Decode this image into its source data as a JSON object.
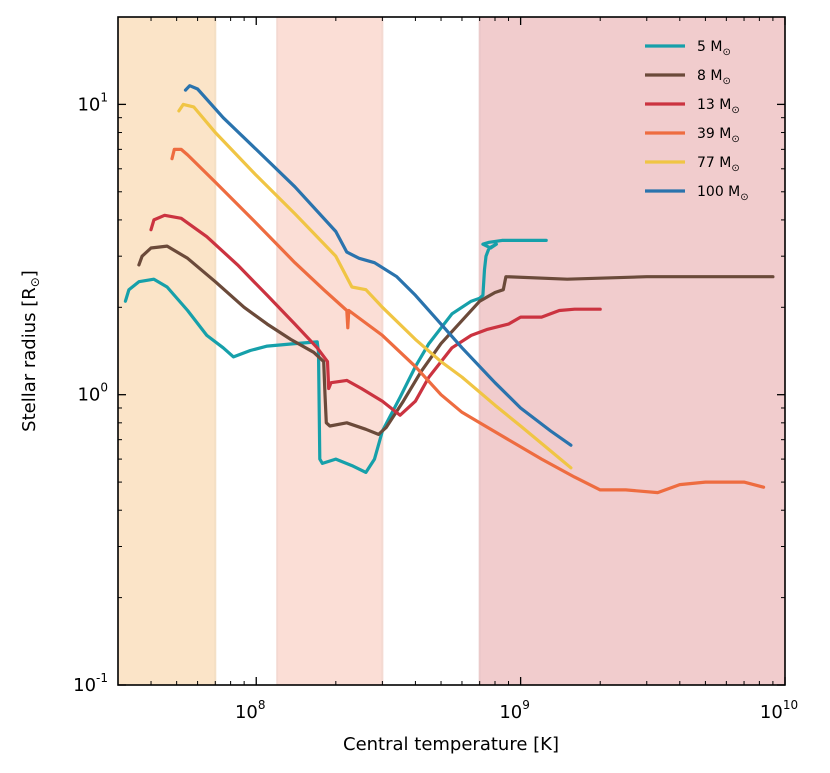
{
  "chart_data": {
    "type": "line",
    "xscale": "log",
    "yscale": "log",
    "xlim": [
      30000000,
      10000000000
    ],
    "ylim": [
      0.1,
      20
    ],
    "xlabel": "Central temperature [K]",
    "ylabel": "Stellar radius [R",
    "ylabel_sun": "⊙",
    "ylabel_close": "]",
    "sun_symbol": "⊙",
    "legend_position": "top-right",
    "xticks": [
      {
        "value": 100000000,
        "base": "10",
        "exp": "8"
      },
      {
        "value": 1000000000,
        "base": "10",
        "exp": "9"
      },
      {
        "value": 10000000000,
        "base": "10",
        "exp": "10"
      }
    ],
    "yticks": [
      {
        "value": 0.1,
        "base": "10",
        "exp": "-1"
      },
      {
        "value": 1,
        "base": "10",
        "exp": "0"
      },
      {
        "value": 10,
        "base": "10",
        "exp": "1"
      }
    ],
    "shaded_bands": [
      {
        "x": [
          30000000,
          70000000
        ],
        "color": "#fbe4c8"
      },
      {
        "x": [
          120000000,
          300000000
        ],
        "color": "#fbded6"
      },
      {
        "x": [
          700000000,
          10000000000
        ],
        "color": "#f1cccd"
      }
    ],
    "series": [
      {
        "name": "5 M",
        "color": "#16a0aa",
        "points": [
          [
            32000000,
            2.1
          ],
          [
            33000000,
            2.3
          ],
          [
            36000000,
            2.45
          ],
          [
            41000000,
            2.5
          ],
          [
            46000000,
            2.35
          ],
          [
            55000000,
            1.95
          ],
          [
            65000000,
            1.6
          ],
          [
            75000000,
            1.45
          ],
          [
            82000000,
            1.35
          ],
          [
            95000000,
            1.42
          ],
          [
            110000000,
            1.47
          ],
          [
            140000000,
            1.5
          ],
          [
            170000000,
            1.52
          ],
          [
            172000000,
            1.4
          ],
          [
            174000000,
            0.6
          ],
          [
            178000000,
            0.58
          ],
          [
            200000000,
            0.6
          ],
          [
            230000000,
            0.57
          ],
          [
            260000000,
            0.54
          ],
          [
            280000000,
            0.6
          ],
          [
            300000000,
            0.75
          ],
          [
            350000000,
            0.98
          ],
          [
            400000000,
            1.25
          ],
          [
            450000000,
            1.5
          ],
          [
            550000000,
            1.9
          ],
          [
            650000000,
            2.1
          ],
          [
            700000000,
            2.15
          ],
          [
            720000000,
            2.2
          ],
          [
            730000000,
            2.7
          ],
          [
            740000000,
            3.0
          ],
          [
            760000000,
            3.2
          ],
          [
            810000000,
            3.3
          ],
          [
            770000000,
            3.2
          ],
          [
            720000000,
            3.3
          ],
          [
            760000000,
            3.35
          ],
          [
            850000000,
            3.4
          ],
          [
            1000000000,
            3.4
          ],
          [
            1250000000,
            3.4
          ]
        ]
      },
      {
        "name": "8 M",
        "color": "#6b4a3a",
        "points": [
          [
            36000000,
            2.8
          ],
          [
            37000000,
            3.0
          ],
          [
            40000000,
            3.2
          ],
          [
            46000000,
            3.25
          ],
          [
            55000000,
            2.95
          ],
          [
            70000000,
            2.45
          ],
          [
            90000000,
            2.0
          ],
          [
            110000000,
            1.75
          ],
          [
            135000000,
            1.55
          ],
          [
            165000000,
            1.4
          ],
          [
            180000000,
            1.3
          ],
          [
            182000000,
            1.0
          ],
          [
            184000000,
            0.8
          ],
          [
            190000000,
            0.78
          ],
          [
            220000000,
            0.8
          ],
          [
            260000000,
            0.76
          ],
          [
            290000000,
            0.73
          ],
          [
            310000000,
            0.77
          ],
          [
            360000000,
            0.95
          ],
          [
            420000000,
            1.2
          ],
          [
            500000000,
            1.5
          ],
          [
            600000000,
            1.8
          ],
          [
            700000000,
            2.1
          ],
          [
            800000000,
            2.25
          ],
          [
            860000000,
            2.3
          ],
          [
            880000000,
            2.55
          ],
          [
            1500000000,
            2.5
          ],
          [
            3000000000,
            2.55
          ],
          [
            6000000000,
            2.55
          ],
          [
            9000000000,
            2.55
          ]
        ]
      },
      {
        "name": "13 M",
        "color": "#cb3340",
        "points": [
          [
            40000000,
            3.7
          ],
          [
            41000000,
            4.0
          ],
          [
            45000000,
            4.15
          ],
          [
            52000000,
            4.05
          ],
          [
            65000000,
            3.5
          ],
          [
            85000000,
            2.8
          ],
          [
            110000000,
            2.2
          ],
          [
            140000000,
            1.75
          ],
          [
            170000000,
            1.45
          ],
          [
            186000000,
            1.3
          ],
          [
            188000000,
            1.05
          ],
          [
            192000000,
            1.1
          ],
          [
            220000000,
            1.12
          ],
          [
            250000000,
            1.05
          ],
          [
            300000000,
            0.95
          ],
          [
            350000000,
            0.85
          ],
          [
            400000000,
            0.95
          ],
          [
            450000000,
            1.15
          ],
          [
            550000000,
            1.45
          ],
          [
            650000000,
            1.6
          ],
          [
            750000000,
            1.68
          ],
          [
            900000000,
            1.75
          ],
          [
            1000000000,
            1.85
          ],
          [
            1200000000,
            1.85
          ],
          [
            1400000000,
            1.95
          ],
          [
            1600000000,
            1.97
          ],
          [
            2000000000,
            1.97
          ]
        ]
      },
      {
        "name": "39 M",
        "color": "#ee6c40",
        "points": [
          [
            48000000,
            6.5
          ],
          [
            49000000,
            7.0
          ],
          [
            52000000,
            7.0
          ],
          [
            55000000,
            6.7
          ],
          [
            70000000,
            5.4
          ],
          [
            100000000,
            3.9
          ],
          [
            140000000,
            2.85
          ],
          [
            180000000,
            2.3
          ],
          [
            220000000,
            1.95
          ],
          [
            222000000,
            1.7
          ],
          [
            224000000,
            1.95
          ],
          [
            300000000,
            1.6
          ],
          [
            400000000,
            1.25
          ],
          [
            500000000,
            1.0
          ],
          [
            600000000,
            0.87
          ],
          [
            700000000,
            0.8
          ],
          [
            900000000,
            0.7
          ],
          [
            1200000000,
            0.6
          ],
          [
            1600000000,
            0.52
          ],
          [
            2000000000,
            0.47
          ],
          [
            2500000000,
            0.47
          ],
          [
            3300000000,
            0.46
          ],
          [
            4000000000,
            0.49
          ],
          [
            5000000000,
            0.5
          ],
          [
            6000000000,
            0.5
          ],
          [
            7000000000,
            0.5
          ],
          [
            8300000000,
            0.48
          ]
        ]
      },
      {
        "name": "77 M",
        "color": "#f0c544",
        "points": [
          [
            51000000,
            9.5
          ],
          [
            53000000,
            10.0
          ],
          [
            58000000,
            9.8
          ],
          [
            70000000,
            8.0
          ],
          [
            100000000,
            5.7
          ],
          [
            140000000,
            4.2
          ],
          [
            200000000,
            3.0
          ],
          [
            230000000,
            2.35
          ],
          [
            260000000,
            2.3
          ],
          [
            300000000,
            2.0
          ],
          [
            400000000,
            1.55
          ],
          [
            500000000,
            1.3
          ],
          [
            600000000,
            1.15
          ],
          [
            800000000,
            0.92
          ],
          [
            1000000000,
            0.78
          ],
          [
            1300000000,
            0.64
          ],
          [
            1550000000,
            0.56
          ]
        ]
      },
      {
        "name": "100 M",
        "color": "#2a73ad",
        "points": [
          [
            54000000,
            11.2
          ],
          [
            56000000,
            11.6
          ],
          [
            60000000,
            11.3
          ],
          [
            75000000,
            9.0
          ],
          [
            100000000,
            7.0
          ],
          [
            140000000,
            5.2
          ],
          [
            200000000,
            3.65
          ],
          [
            220000000,
            3.1
          ],
          [
            245000000,
            2.95
          ],
          [
            280000000,
            2.85
          ],
          [
            340000000,
            2.55
          ],
          [
            400000000,
            2.2
          ],
          [
            500000000,
            1.75
          ],
          [
            600000000,
            1.45
          ],
          [
            800000000,
            1.1
          ],
          [
            1000000000,
            0.9
          ],
          [
            1300000000,
            0.75
          ],
          [
            1550000000,
            0.67
          ]
        ]
      }
    ]
  }
}
